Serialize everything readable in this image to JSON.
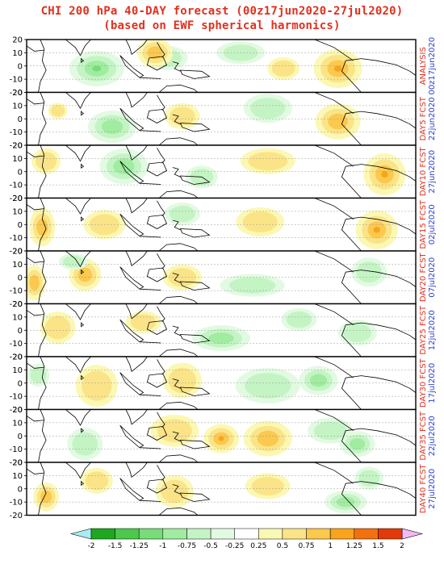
{
  "title_line1": "CHI 200 hPa 40-DAY forecast (00z17jun2020-27jul2020)",
  "title_line2": "(based on EWF spherical harmonics)",
  "y_tick_labels": [
    "20",
    "10",
    "0",
    "-10",
    "-20"
  ],
  "panels": [
    {
      "label_top": "ANALYSIS",
      "label_bottom": "00z17jun2020"
    },
    {
      "label_top": "DAY5 FCST",
      "label_bottom": "22jun2020"
    },
    {
      "label_top": "DAY10 FCST",
      "label_bottom": "27jun2020"
    },
    {
      "label_top": "DAY15 FCST",
      "label_bottom": "02jul2020"
    },
    {
      "label_top": "DAY20 FCST",
      "label_bottom": "07jul2020"
    },
    {
      "label_top": "DAY25 FCST",
      "label_bottom": "12jul2020"
    },
    {
      "label_top": "DAY30 FCST",
      "label_bottom": "17jul2020"
    },
    {
      "label_top": "DAY35 FCST",
      "label_bottom": "22jul2020"
    },
    {
      "label_top": "DAY40 FCST",
      "label_bottom": "27jul2020"
    }
  ],
  "colorbar": {
    "labels": [
      "-2",
      "-1.5",
      "-1.25",
      "-1",
      "-0.75",
      "-0.5",
      "-0.25",
      "0.25",
      "0.5",
      "0.75",
      "1",
      "1.25",
      "1.5",
      "2"
    ],
    "colors": [
      "#1ea81e",
      "#4cc84c",
      "#78dc78",
      "#a0eca0",
      "#c4f4c4",
      "#e2fae2",
      "#ffffff",
      "#fbf8b4",
      "#fbe488",
      "#fbc94e",
      "#f9a41c",
      "#f2700e",
      "#e23a0a"
    ],
    "low_arrow_color": "#a8ecf4",
    "high_arrow_color": "#f4b8f4"
  },
  "colors": {
    "title": "#e0301e",
    "label_top": "#e0301e",
    "label_bottom": "#2a3fd0",
    "frame": "#000000",
    "grid": "#9a9a9a",
    "coast": "#000000"
  }
}
